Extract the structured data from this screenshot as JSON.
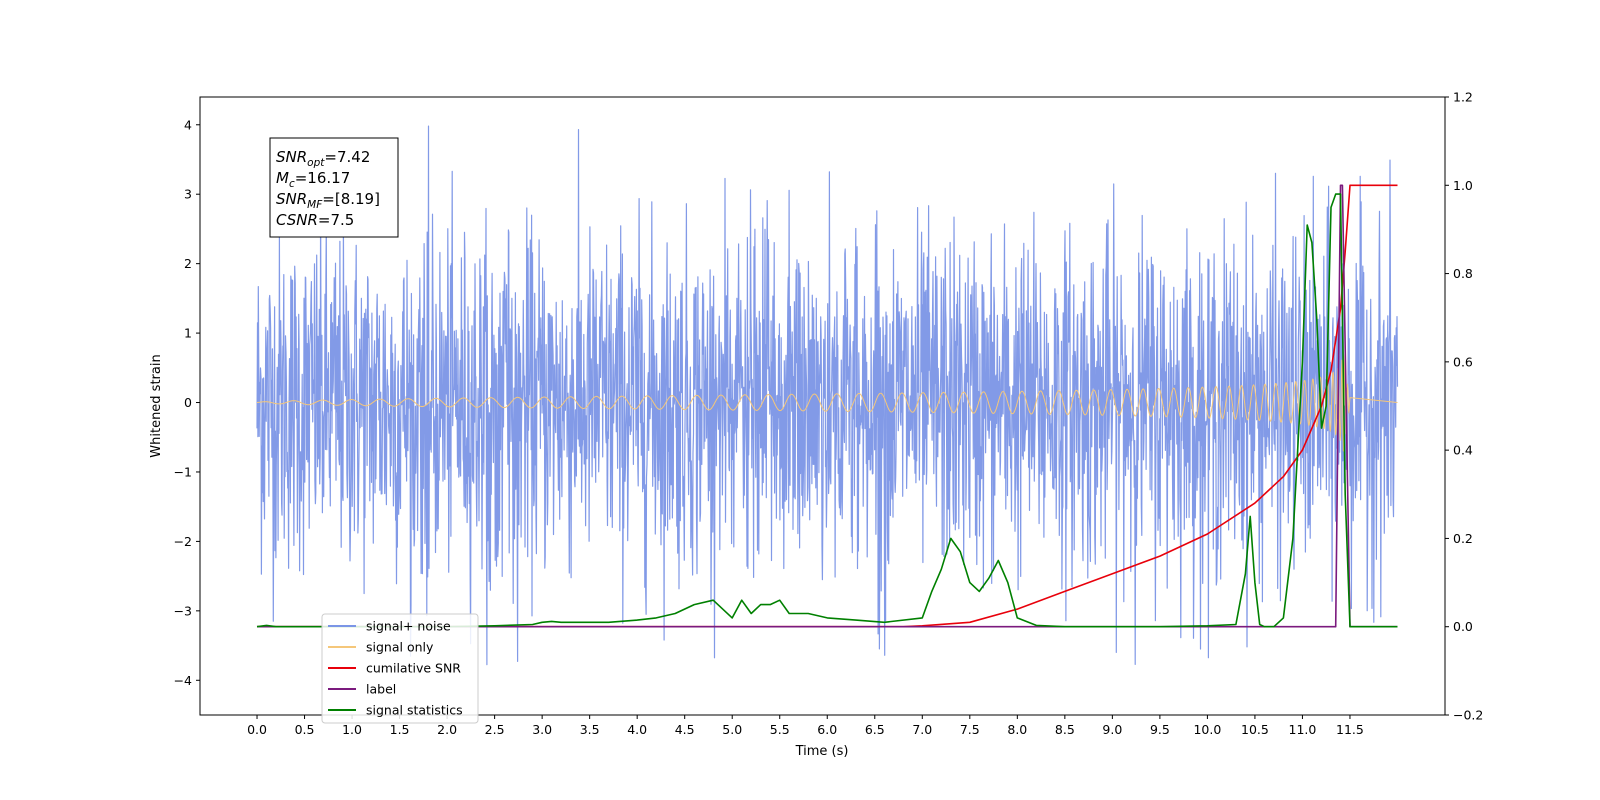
{
  "chart_data": {
    "type": "line",
    "xlabel": "Time (s)",
    "ylabel": "Whitened strain",
    "xlim": [
      -0.6,
      12.5
    ],
    "ylim": [
      -4.5,
      4.4
    ],
    "y2lim": [
      -0.2,
      1.2
    ],
    "x_ticks": [
      "0.0",
      "0.5",
      "1.0",
      "1.5",
      "2.0",
      "2.5",
      "3.0",
      "3.5",
      "4.0",
      "4.5",
      "5.0",
      "5.5",
      "6.0",
      "6.5",
      "7.0",
      "7.5",
      "8.0",
      "8.5",
      "9.0",
      "9.5",
      "10.0",
      "10.5",
      "11.0",
      "11.5"
    ],
    "y_ticks": [
      "4",
      "3",
      "2",
      "1",
      "0",
      "−1",
      "−2",
      "−3",
      "−4"
    ],
    "y2_ticks": [
      "1.2",
      "1.0",
      "0.8",
      "0.6",
      "0.4",
      "0.2",
      "0.0",
      "−0.2"
    ],
    "grid": false,
    "legend_position": "lower-left",
    "annotation": {
      "lines": [
        {
          "sym": "SNR",
          "sub": "opt",
          "val": "=7.42"
        },
        {
          "sym": "M",
          "sub": "c",
          "val": "=16.17"
        },
        {
          "sym": "SNR",
          "sub": "MF",
          "val": "=[8.19]"
        },
        {
          "sym": "CSNR",
          "sub": "",
          "val": "=7.5"
        }
      ]
    },
    "series": [
      {
        "name": "signal+ noise",
        "color": "#7b95e6",
        "axis": "left",
        "kind": "noise",
        "t_range": [
          0,
          12.0
        ],
        "amplitude_std": 1.2,
        "peak_range": [
          -3.8,
          4.0
        ]
      },
      {
        "name": "signal only",
        "color": "#f5c77a",
        "axis": "left",
        "kind": "chirp",
        "t_range": [
          0,
          11.5
        ],
        "peak_amplitude": 0.7,
        "merger_time": 11.45
      },
      {
        "name": "cumilative SNR",
        "color": "#e8000b",
        "axis": "right",
        "x": [
          0,
          6.8,
          7.0,
          7.5,
          8.0,
          8.5,
          9.0,
          9.5,
          10.0,
          10.5,
          10.8,
          11.0,
          11.2,
          11.3,
          11.4,
          11.45,
          11.5,
          12.0
        ],
        "y": [
          0.0,
          0.0,
          0.002,
          0.01,
          0.04,
          0.08,
          0.12,
          0.16,
          0.21,
          0.28,
          0.34,
          0.4,
          0.5,
          0.58,
          0.72,
          0.85,
          1.0,
          1.0
        ]
      },
      {
        "name": "label",
        "color": "#7b1a7e",
        "axis": "right",
        "x": [
          0,
          11.3,
          11.35,
          11.4,
          11.42,
          11.5,
          12.0
        ],
        "y": [
          0.0,
          0.0,
          0.0,
          1.0,
          1.0,
          0.0,
          0.0
        ]
      },
      {
        "name": "signal statistics",
        "color": "#008000",
        "axis": "right",
        "x": [
          0,
          0.1,
          0.2,
          0.5,
          1.0,
          2.0,
          2.5,
          2.9,
          3.0,
          3.1,
          3.2,
          3.4,
          3.7,
          4.0,
          4.2,
          4.4,
          4.6,
          4.8,
          5.0,
          5.1,
          5.2,
          5.3,
          5.4,
          5.5,
          5.6,
          5.8,
          6.0,
          6.3,
          6.6,
          7.0,
          7.1,
          7.2,
          7.3,
          7.4,
          7.5,
          7.6,
          7.7,
          7.8,
          7.9,
          8.0,
          8.2,
          8.5,
          9.0,
          9.5,
          10.0,
          10.3,
          10.4,
          10.45,
          10.5,
          10.55,
          10.6,
          10.7,
          10.8,
          10.9,
          11.0,
          11.05,
          11.1,
          11.15,
          11.2,
          11.25,
          11.3,
          11.35,
          11.4,
          11.45,
          11.5,
          12.0
        ],
        "y": [
          0.0,
          0.003,
          0.0,
          0.0,
          0.0,
          0.0,
          0.002,
          0.005,
          0.01,
          0.012,
          0.01,
          0.01,
          0.01,
          0.015,
          0.02,
          0.03,
          0.05,
          0.06,
          0.02,
          0.06,
          0.03,
          0.05,
          0.05,
          0.06,
          0.03,
          0.03,
          0.02,
          0.015,
          0.01,
          0.02,
          0.08,
          0.13,
          0.2,
          0.17,
          0.1,
          0.08,
          0.11,
          0.15,
          0.1,
          0.02,
          0.003,
          0.0,
          0.0,
          0.0,
          0.002,
          0.005,
          0.12,
          0.25,
          0.1,
          0.005,
          0.0,
          0.0,
          0.02,
          0.2,
          0.6,
          0.91,
          0.87,
          0.7,
          0.45,
          0.5,
          0.95,
          0.98,
          0.98,
          0.3,
          0.0,
          0.0
        ]
      }
    ]
  }
}
